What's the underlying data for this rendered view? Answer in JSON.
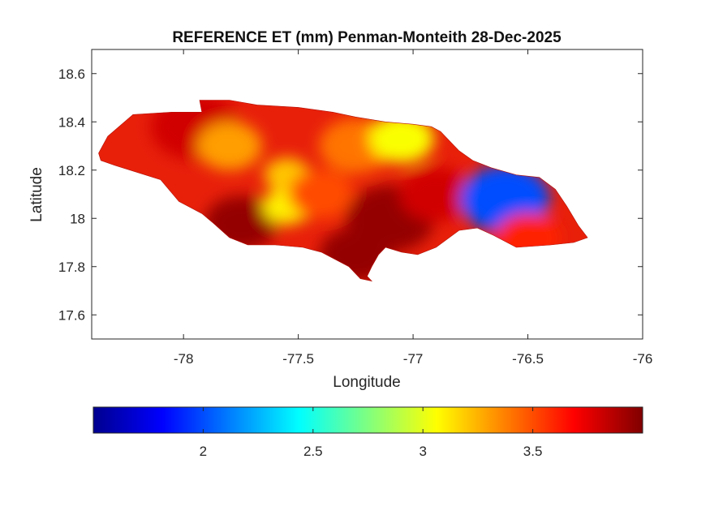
{
  "chart_data": {
    "type": "heatmap",
    "title": "REFERENCE ET (mm) Penman-Monteith 28-Dec-2025",
    "xlabel": "Longitude",
    "ylabel": "Latitude",
    "xlim": [
      -78.4,
      -76.0
    ],
    "ylim": [
      17.5,
      18.7
    ],
    "xticks": [
      -78,
      -77.5,
      -77,
      -76.5,
      -76
    ],
    "xtick_labels": [
      "-78",
      "-77.5",
      "-77",
      "-76.5",
      "-76"
    ],
    "yticks": [
      17.6,
      17.8,
      18,
      18.2,
      18.4,
      18.6
    ],
    "ytick_labels": [
      "17.6",
      "17.8",
      "18",
      "18.2",
      "18.4",
      "18.6"
    ],
    "grid": false,
    "colormap": "jet",
    "colorbar": {
      "orientation": "horizontal",
      "location": "below",
      "range": [
        1.5,
        4.0
      ],
      "ticks": [
        2,
        2.5,
        3,
        3.5
      ],
      "tick_labels": [
        "2",
        "2.5",
        "3",
        "3.5"
      ]
    },
    "regions": [
      {
        "lon": -77.95,
        "lat": 18.38,
        "value": 3.8
      },
      {
        "lon": -77.8,
        "lat": 18.3,
        "value": 3.3
      },
      {
        "lon": -77.75,
        "lat": 17.98,
        "value": 3.95
      },
      {
        "lon": -77.55,
        "lat": 18.05,
        "value": 3.1
      },
      {
        "lon": -77.55,
        "lat": 18.18,
        "value": 3.2
      },
      {
        "lon": -77.4,
        "lat": 18.1,
        "value": 3.5
      },
      {
        "lon": -77.25,
        "lat": 18.3,
        "value": 3.4
      },
      {
        "lon": -77.05,
        "lat": 18.33,
        "value": 3.05
      },
      {
        "lon": -77.1,
        "lat": 18.0,
        "value": 3.95
      },
      {
        "lon": -77.25,
        "lat": 17.85,
        "value": 3.95
      },
      {
        "lon": -76.9,
        "lat": 18.1,
        "value": 3.8
      },
      {
        "lon": -76.6,
        "lat": 18.08,
        "value": 2.0
      },
      {
        "lon": -76.5,
        "lat": 17.92,
        "value": 3.6
      }
    ]
  }
}
